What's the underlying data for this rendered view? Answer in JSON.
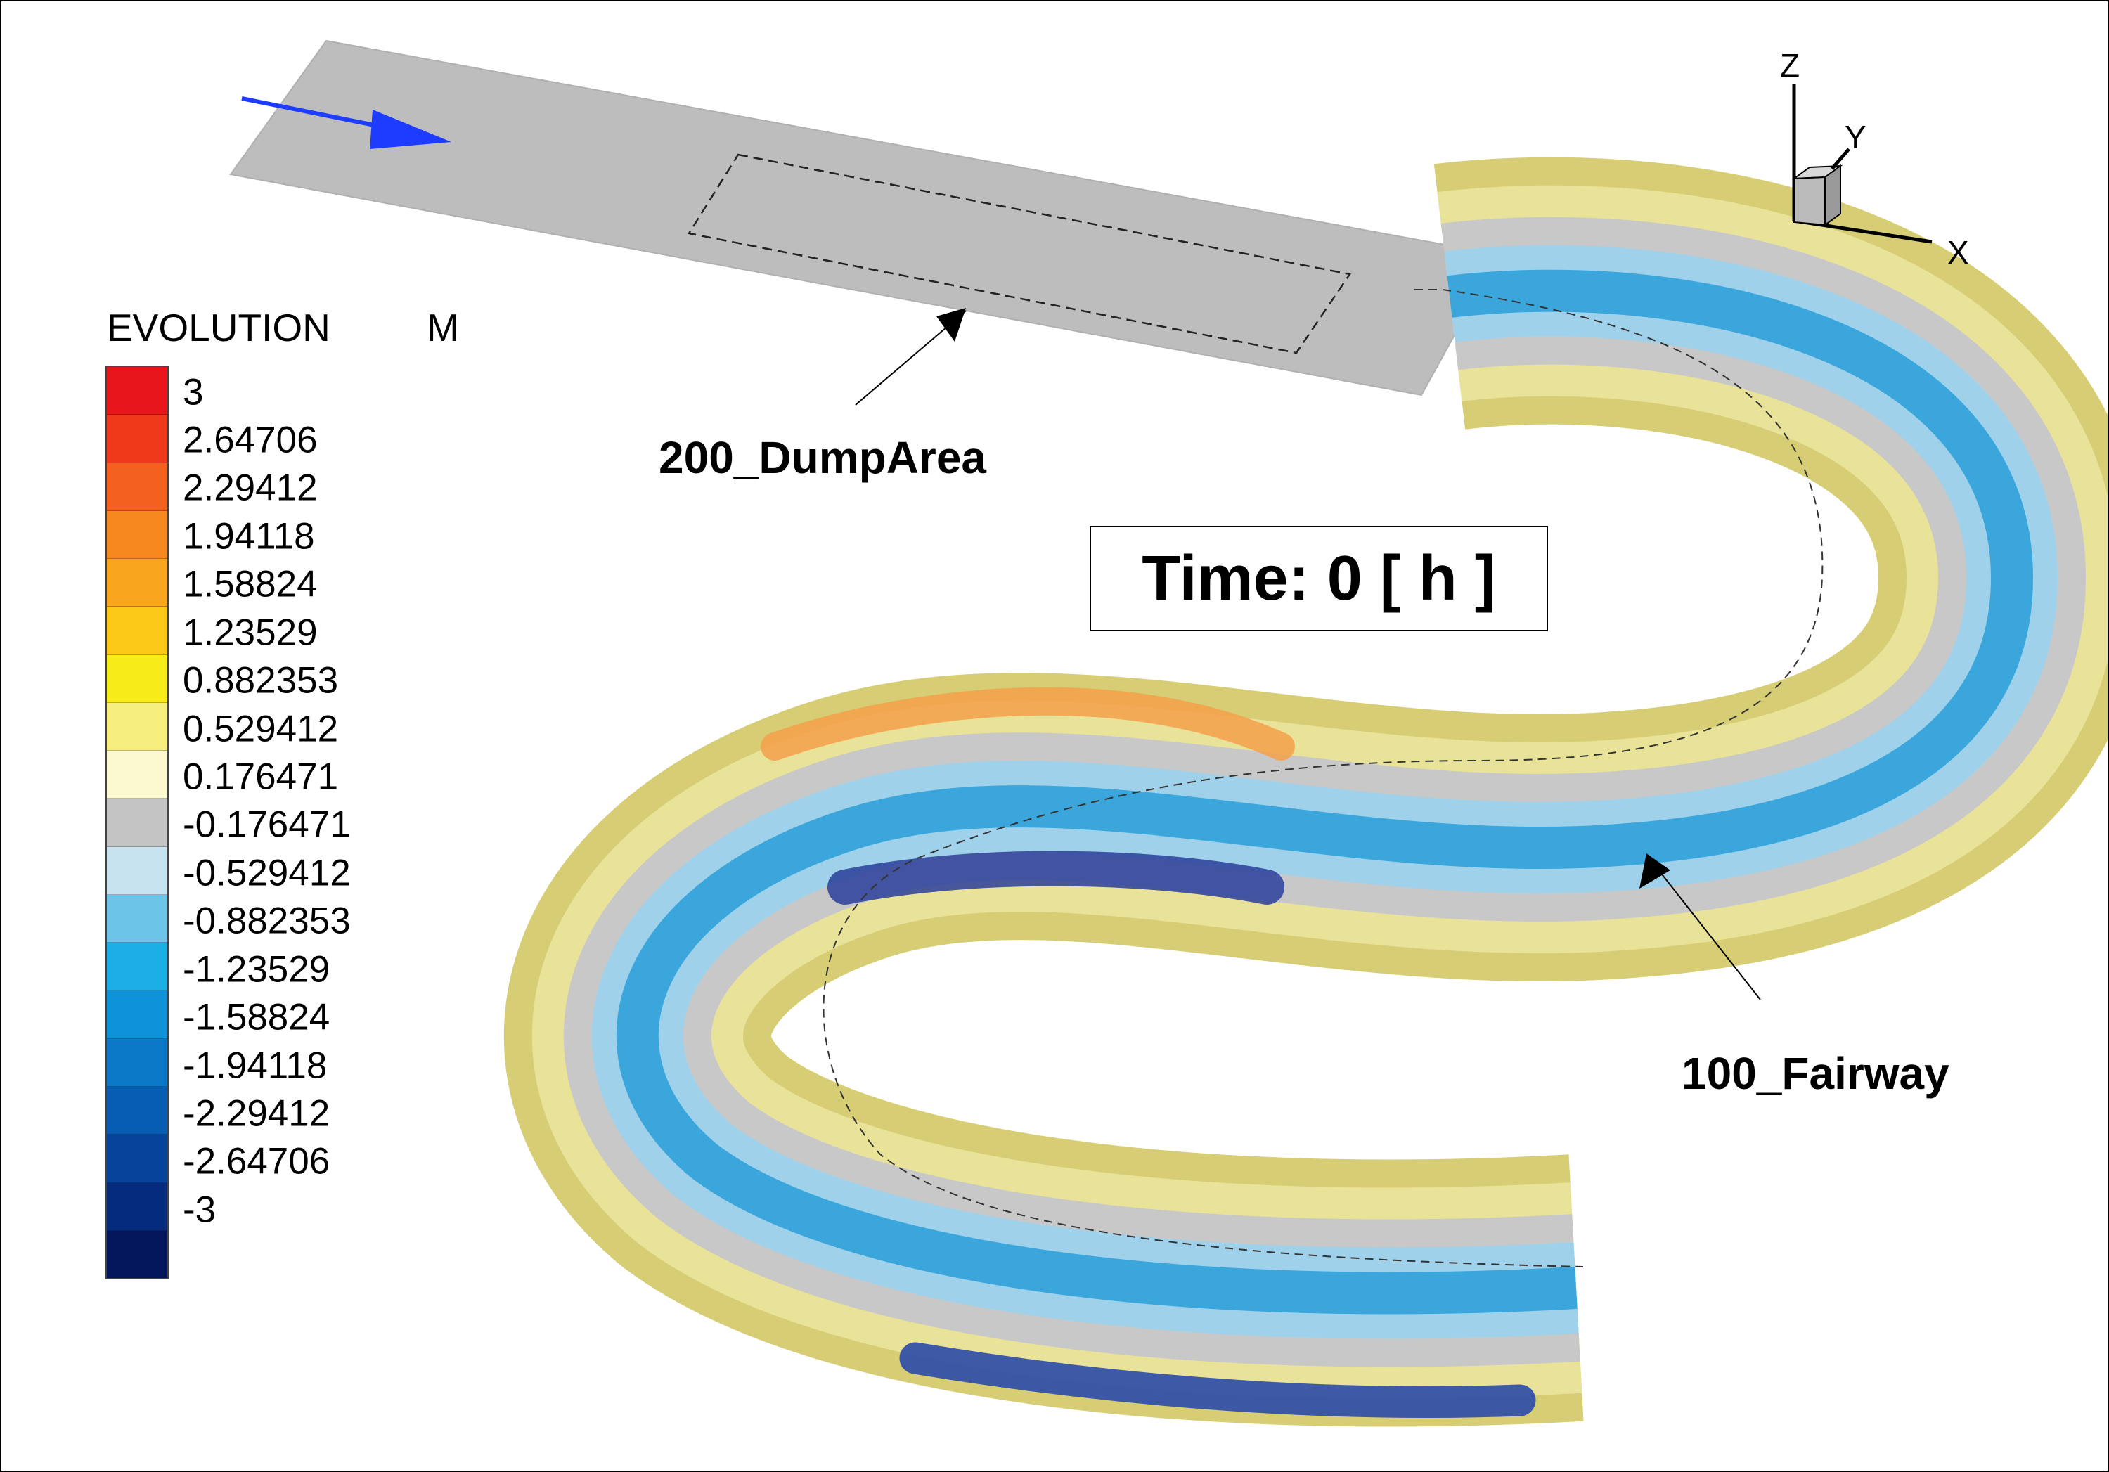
{
  "legend": {
    "title": "EVOLUTION",
    "unit": "M",
    "levels": [
      {
        "label": "3",
        "color": "#e8161b"
      },
      {
        "label": "2.64706",
        "color": "#f0391b"
      },
      {
        "label": "2.29412",
        "color": "#f4601d"
      },
      {
        "label": "1.94118",
        "color": "#f7871f"
      },
      {
        "label": "1.58824",
        "color": "#f9a51d"
      },
      {
        "label": "1.23529",
        "color": "#fbc818"
      },
      {
        "label": "0.882353",
        "color": "#f7eb1a"
      },
      {
        "label": "0.529412",
        "color": "#f6ef7e"
      },
      {
        "label": "0.176471",
        "color": "#fcf8cf"
      },
      {
        "label": "-0.176471",
        "color": "#c4c4c4"
      },
      {
        "label": "-0.529412",
        "color": "#c7e3ef"
      },
      {
        "label": "-0.882353",
        "color": "#6cc4e8"
      },
      {
        "label": "-1.23529",
        "color": "#1bafe6"
      },
      {
        "label": "-1.58824",
        "color": "#0e93d8"
      },
      {
        "label": "-1.94118",
        "color": "#0a78c6"
      },
      {
        "label": "-2.29412",
        "color": "#075db1"
      },
      {
        "label": "-2.64706",
        "color": "#06439a"
      },
      {
        "label": "-3",
        "color": "#042b7c"
      }
    ],
    "extra_bottom_color": "#03165c"
  },
  "time_label": "Time: 0 [ h ]",
  "annotations": {
    "dump_area": "200_DumpArea",
    "fairway": "100_Fairway"
  },
  "axes_triad": {
    "x": "X",
    "y": "Y",
    "z": "Z"
  },
  "colors": {
    "flat_bed": "#bdbdbd",
    "flow_arrow": "#1e3cff",
    "frame": "#000000"
  }
}
